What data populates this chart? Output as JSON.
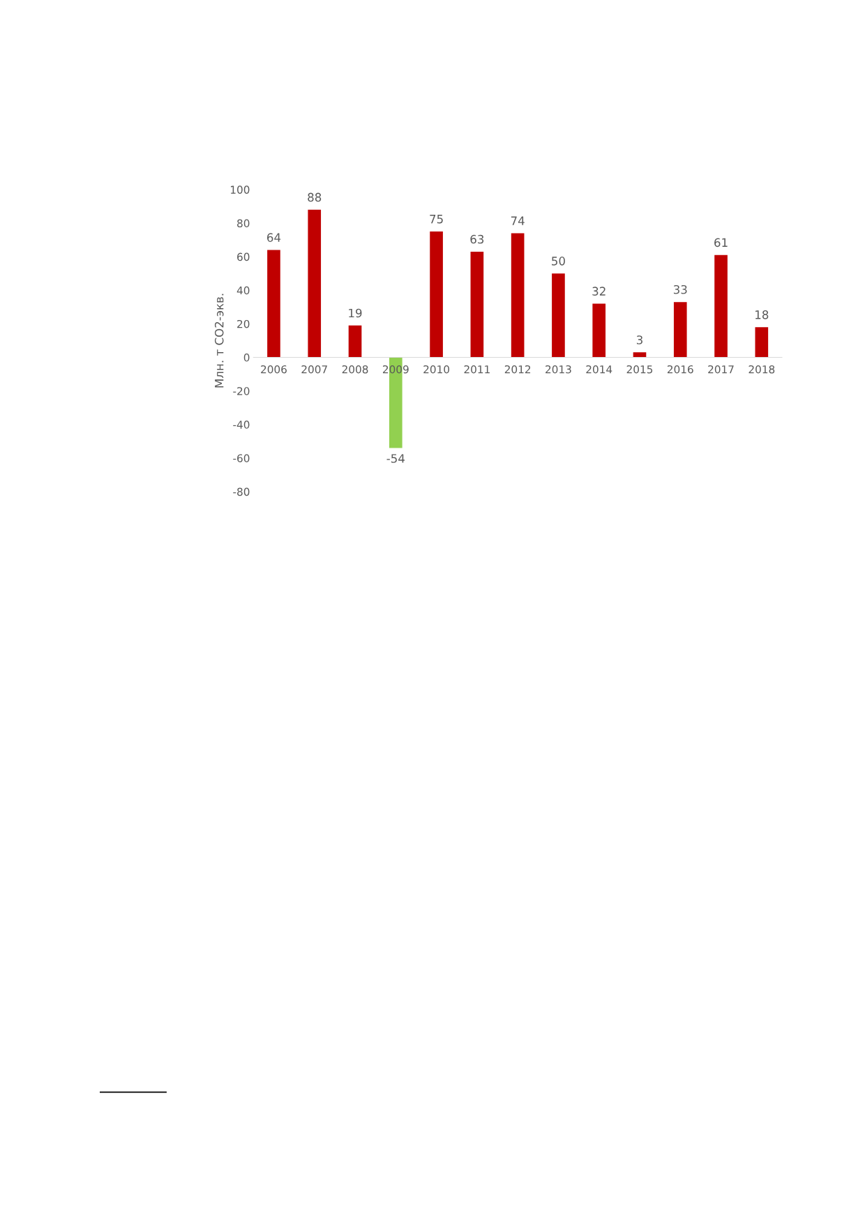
{
  "chart_data": {
    "type": "bar",
    "ylabel": "Млн. т CO2-экв.",
    "categories": [
      "2006",
      "2007",
      "2008",
      "2009",
      "2010",
      "2011",
      "2012",
      "2013",
      "2014",
      "2015",
      "2016",
      "2017",
      "2018"
    ],
    "values": [
      64,
      88,
      19,
      -54,
      75,
      63,
      74,
      50,
      32,
      3,
      33,
      61,
      18
    ],
    "colors": [
      "#c00000",
      "#c00000",
      "#c00000",
      "#92d050",
      "#c00000",
      "#c00000",
      "#c00000",
      "#c00000",
      "#c00000",
      "#c00000",
      "#c00000",
      "#c00000",
      "#c00000"
    ],
    "ylim": [
      -80,
      100
    ],
    "yticks": [
      -80,
      -60,
      -40,
      -20,
      0,
      20,
      40,
      60,
      80,
      100
    ],
    "data_labels": true,
    "grid": false,
    "legend": false
  }
}
